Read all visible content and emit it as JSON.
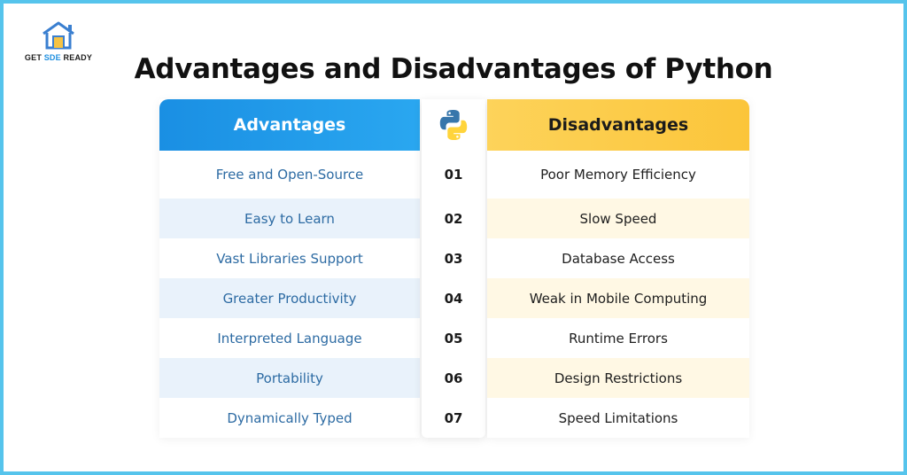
{
  "brand": {
    "text_main": "GET ",
    "text_accent": "SDE",
    "text_end": " READY"
  },
  "title": "Advantages and Disadvantages of Python",
  "table": {
    "advantages_header": "Advantages",
    "disadvantages_header": "Disadvantages",
    "middle_icon": "python-logo-icon",
    "advantages": [
      "Free and Open-Source",
      "Easy to Learn",
      "Vast Libraries Support",
      "Greater Productivity",
      "Interpreted Language",
      "Portability",
      "Dynamically Typed"
    ],
    "numbers": [
      "01",
      "02",
      "03",
      "04",
      "05",
      "06",
      "07"
    ],
    "disadvantages": [
      "Poor Memory Efficiency",
      "Slow Speed",
      "Database Access",
      "Weak in Mobile Computing",
      "Runtime Errors",
      "Design Restrictions",
      "Speed Limitations"
    ]
  },
  "colors": {
    "frame": "#56c4ec",
    "advantages_header": "#1a8fe3",
    "disadvantages_header": "#fbc53a",
    "advantages_text": "#2d6ba3",
    "python_blue": "#3776ab",
    "python_yellow": "#ffd43b"
  }
}
